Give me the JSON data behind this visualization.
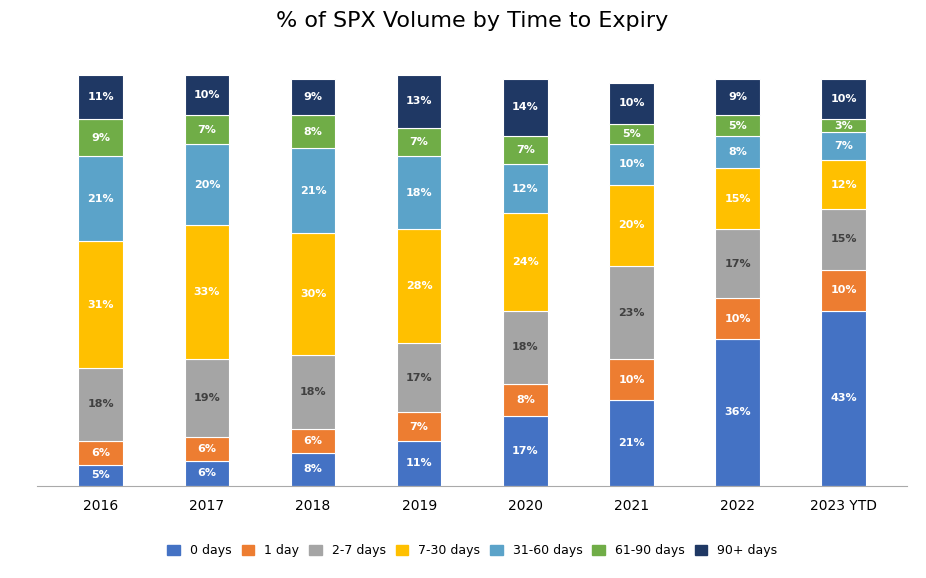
{
  "title": "% of SPX Volume by Time to Expiry",
  "years": [
    "2016",
    "2017",
    "2018",
    "2019",
    "2020",
    "2021",
    "2022",
    "2023 YTD"
  ],
  "categories": [
    "0 days",
    "1 day",
    "2-7 days",
    "7-30 days",
    "31-60 days",
    "61-90 days",
    "90+ days"
  ],
  "values": {
    "0 days": [
      5,
      6,
      8,
      11,
      17,
      21,
      36,
      43
    ],
    "1 day": [
      6,
      6,
      6,
      7,
      8,
      10,
      10,
      10
    ],
    "2-7 days": [
      18,
      19,
      18,
      17,
      18,
      23,
      17,
      15
    ],
    "7-30 days": [
      31,
      33,
      30,
      28,
      24,
      20,
      15,
      12
    ],
    "31-60 days": [
      21,
      20,
      21,
      18,
      12,
      10,
      8,
      7
    ],
    "61-90 days": [
      9,
      7,
      8,
      7,
      7,
      5,
      5,
      3
    ],
    "90+ days": [
      11,
      10,
      9,
      13,
      14,
      10,
      9,
      10
    ]
  },
  "colors": {
    "0 days": "#4472C4",
    "1 day": "#ED7D31",
    "2-7 days": "#A5A5A5",
    "7-30 days": "#FFC000",
    "31-60 days": "#5BA3C9",
    "61-90 days": "#70AD47",
    "90+ days": "#1F3864"
  },
  "background_color": "#FFFFFF",
  "title_fontsize": 16,
  "bar_width": 0.42,
  "figsize": [
    9.26,
    5.78
  ],
  "dpi": 100
}
